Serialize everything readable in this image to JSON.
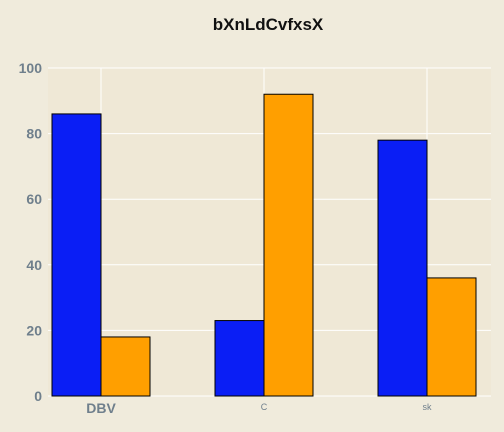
{
  "chart_data": {
    "type": "bar",
    "title": "bXnLdCvfxsX",
    "xlabel": "",
    "ylabel": "",
    "categories": [
      "DBV",
      "C",
      "sk"
    ],
    "series": [
      {
        "values": [
          86,
          23,
          78
        ],
        "color": "#0a1ef5"
      },
      {
        "values": [
          18,
          92,
          36
        ],
        "color": "#ff9f00"
      }
    ],
    "ylim": [
      0,
      100
    ],
    "yticks": [
      0,
      20,
      40,
      60,
      80,
      100
    ],
    "ytick_labels": [
      "0",
      "20",
      "40",
      "60",
      "80",
      "100"
    ],
    "grid": true,
    "plot_background": "#efe8d6",
    "grid_color": "#ffffff"
  }
}
